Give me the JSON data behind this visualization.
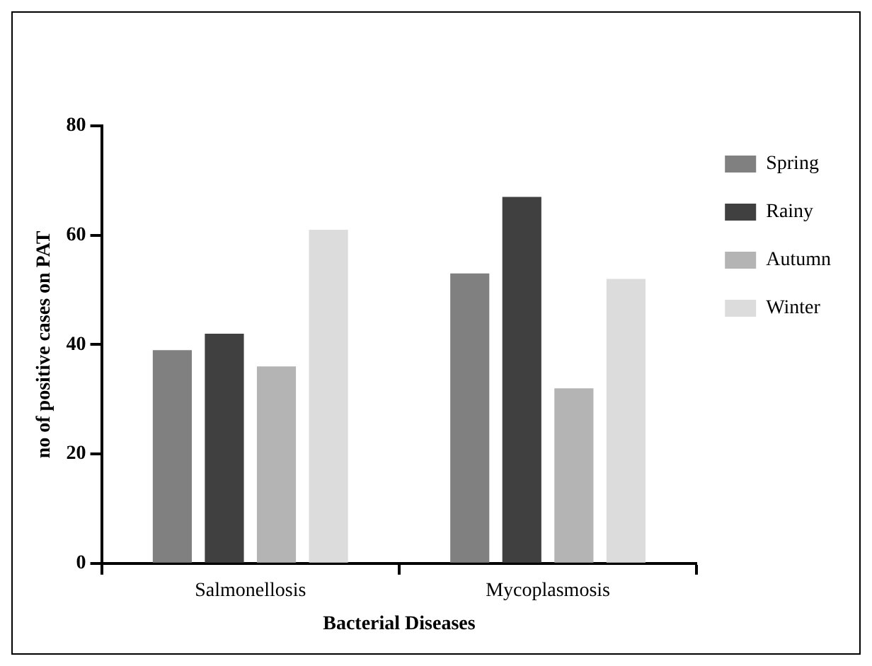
{
  "chart_data": {
    "type": "bar",
    "xlabel": "Bacterial Diseases",
    "ylabel": "no of positive cases on PAT",
    "categories": [
      "Salmonellosis",
      "Mycoplasmosis"
    ],
    "series": [
      {
        "name": "Spring",
        "color": "#808080",
        "values": [
          39,
          53
        ]
      },
      {
        "name": "Rainy",
        "color": "#404040",
        "values": [
          42,
          67
        ]
      },
      {
        "name": "Autumn",
        "color": "#b4b4b4",
        "values": [
          36,
          32
        ]
      },
      {
        "name": "Winter",
        "color": "#dcdcdc",
        "values": [
          61,
          52
        ]
      }
    ],
    "ylim": [
      0,
      80
    ],
    "yticks": [
      0,
      20,
      40,
      60,
      80
    ],
    "grid": false,
    "legend": "right"
  }
}
